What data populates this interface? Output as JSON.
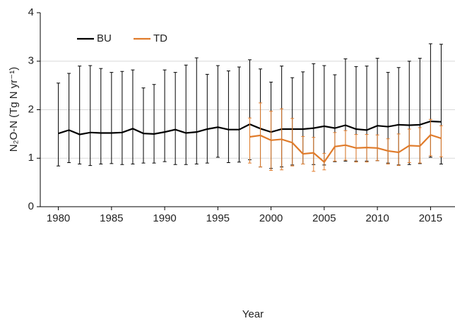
{
  "chart_data": {
    "type": "line",
    "xlabel": "Year",
    "ylabel": "N₂O-N (Tg N yr⁻¹)",
    "xlim": [
      1978.3,
      2017.3
    ],
    "ylim": [
      0,
      4
    ],
    "xticks": [
      1980,
      1985,
      1990,
      1995,
      2000,
      2005,
      2010,
      2015
    ],
    "yticks": [
      0,
      1,
      2,
      3,
      4
    ],
    "grid": true,
    "legend": "upper left",
    "series": [
      {
        "name": "BU",
        "color": "#000000",
        "x": [
          1980,
          1981,
          1982,
          1983,
          1984,
          1985,
          1986,
          1987,
          1988,
          1989,
          1990,
          1991,
          1992,
          1993,
          1994,
          1995,
          1996,
          1997,
          1998,
          1999,
          2000,
          2001,
          2002,
          2003,
          2004,
          2005,
          2006,
          2007,
          2008,
          2009,
          2010,
          2011,
          2012,
          2013,
          2014,
          2015,
          2016
        ],
        "values": [
          1.51,
          1.58,
          1.49,
          1.53,
          1.52,
          1.52,
          1.53,
          1.61,
          1.51,
          1.5,
          1.54,
          1.59,
          1.52,
          1.54,
          1.6,
          1.64,
          1.59,
          1.59,
          1.7,
          1.61,
          1.54,
          1.6,
          1.6,
          1.6,
          1.62,
          1.66,
          1.62,
          1.68,
          1.6,
          1.58,
          1.67,
          1.65,
          1.69,
          1.68,
          1.69,
          1.76,
          1.75
        ],
        "upper": [
          2.55,
          2.75,
          2.9,
          2.91,
          2.85,
          2.77,
          2.79,
          2.82,
          2.45,
          2.52,
          2.82,
          2.77,
          2.92,
          3.07,
          2.73,
          2.91,
          2.8,
          2.88,
          3.03,
          2.84,
          2.57,
          2.9,
          2.66,
          2.78,
          2.95,
          2.91,
          2.72,
          3.05,
          2.89,
          2.9,
          3.06,
          2.77,
          2.87,
          3.0,
          3.06,
          3.36,
          3.35
        ],
        "lower": [
          0.84,
          0.91,
          0.88,
          0.85,
          0.88,
          0.89,
          0.87,
          0.88,
          0.9,
          0.9,
          0.93,
          0.87,
          0.87,
          0.88,
          0.9,
          1.02,
          0.91,
          0.92,
          0.97,
          0.82,
          0.79,
          0.82,
          0.86,
          0.88,
          0.87,
          0.86,
          0.93,
          0.94,
          0.94,
          0.94,
          0.95,
          0.9,
          0.86,
          0.87,
          0.89,
          1.02,
          0.88
        ]
      },
      {
        "name": "TD",
        "color": "#e07b2a",
        "x": [
          1998,
          1999,
          2000,
          2001,
          2002,
          2003,
          2004,
          2005,
          2006,
          2007,
          2008,
          2009,
          2010,
          2011,
          2012,
          2013,
          2014,
          2015,
          2016
        ],
        "values": [
          1.44,
          1.47,
          1.37,
          1.39,
          1.32,
          1.09,
          1.11,
          0.92,
          1.24,
          1.27,
          1.21,
          1.22,
          1.21,
          1.15,
          1.12,
          1.26,
          1.25,
          1.48,
          1.41
        ],
        "upper": [
          1.83,
          2.14,
          1.97,
          2.02,
          1.82,
          1.45,
          1.43,
          1.1,
          1.53,
          1.57,
          1.49,
          1.49,
          1.48,
          1.4,
          1.5,
          1.6,
          1.63,
          1.8,
          1.67
        ],
        "lower": [
          0.9,
          0.82,
          0.75,
          0.76,
          0.84,
          0.88,
          0.73,
          0.76,
          0.94,
          0.96,
          0.92,
          0.92,
          0.95,
          0.88,
          0.85,
          0.91,
          0.9,
          1.05,
          1.03
        ]
      }
    ]
  }
}
